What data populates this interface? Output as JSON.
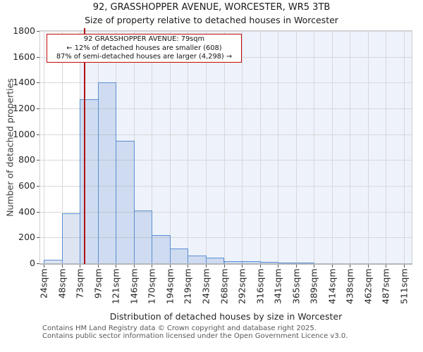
{
  "title": "92, GRASSHOPPER AVENUE, WORCESTER, WR5 3TB",
  "subtitle": "Size of property relative to detached houses in Worcester",
  "annotation": {
    "line1": "92 GRASSHOPPER AVENUE: 79sqm",
    "line2": "← 12% of detached houses are smaller (608)",
    "line3": "87% of semi-detached houses are larger (4,298) →"
  },
  "chart_data": {
    "type": "bar",
    "title": "92, GRASSHOPPER AVENUE, WORCESTER, WR5 3TB — Size of property relative to detached houses in Worcester",
    "xlabel": "Distribution of detached houses by size in Worcester",
    "ylabel": "Number of detached properties",
    "x_tick_labels": [
      "24sqm",
      "48sqm",
      "73sqm",
      "97sqm",
      "121sqm",
      "146sqm",
      "170sqm",
      "194sqm",
      "219sqm",
      "243sqm",
      "268sqm",
      "292sqm",
      "316sqm",
      "341sqm",
      "365sqm",
      "389sqm",
      "414sqm",
      "438sqm",
      "462sqm",
      "487sqm",
      "511sqm"
    ],
    "bin_edges_sqm": [
      24,
      48,
      73,
      97,
      121,
      146,
      170,
      194,
      219,
      243,
      268,
      292,
      316,
      341,
      365,
      389,
      414,
      438,
      462,
      487,
      511
    ],
    "values": [
      25,
      390,
      1270,
      1400,
      950,
      410,
      220,
      115,
      60,
      45,
      15,
      15,
      12,
      6,
      4,
      0,
      0,
      0,
      0,
      0
    ],
    "y_ticks": [
      0,
      200,
      400,
      600,
      800,
      1000,
      1200,
      1400,
      1600,
      1800
    ],
    "ylim": [
      0,
      1800
    ],
    "grid": true,
    "legend": "none",
    "marker_sqm": 79,
    "tint_start_sqm": 73,
    "colors": {
      "bar_fill": "rgba(99,137,201,0.22)",
      "bar_border": "#5b8fd1",
      "marker_line": "#b01114",
      "annotation_border": "#c00808",
      "background_tint": "#eef2fb",
      "gridline": "#d8d8d8"
    }
  },
  "footer": {
    "line1": "Contains HM Land Registry data © Crown copyright and database right 2025.",
    "line2": "Contains public sector information licensed under the Open Government Licence v3.0."
  }
}
